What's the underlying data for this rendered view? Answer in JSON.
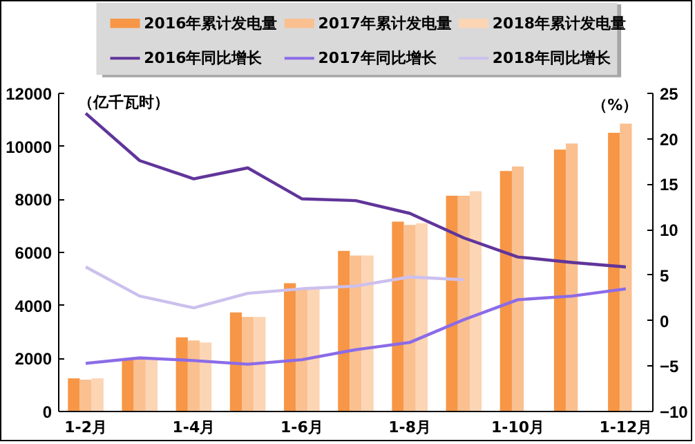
{
  "chart_data": {
    "type": "bar",
    "ylabel": "（亿千瓦时）",
    "y2label": "（%）",
    "categories": [
      "1-2月",
      null,
      "1-4月",
      null,
      "1-6月",
      null,
      "1-8月",
      null,
      "1-10月",
      null,
      "1-12月"
    ],
    "series": [
      {
        "name": "2016年累计发电量",
        "color": "#f79646",
        "values": [
          1250,
          1970,
          2800,
          3740,
          4840,
          6060,
          7160,
          8140,
          9070,
          9880,
          10510
        ]
      },
      {
        "name": "2017年累计发电量",
        "color": "#fac090",
        "values": [
          1200,
          2000,
          2680,
          3570,
          4610,
          5880,
          7040,
          8140,
          9240,
          10110,
          10860
        ]
      },
      {
        "name": "2018年累计发电量",
        "color": "#fcd5b5",
        "values": [
          1250,
          1950,
          2600,
          3570,
          4610,
          5880,
          7100,
          8310,
          null,
          null,
          null
        ]
      },
      {
        "name": "2016年同比增长",
        "type": "line",
        "axis": "y2",
        "color": "#60359a",
        "values": [
          22.8,
          17.6,
          15.6,
          16.8,
          13.4,
          13.2,
          11.8,
          9.1,
          7.0,
          6.4,
          5.9
        ]
      },
      {
        "name": "2017年同比增长",
        "type": "line",
        "axis": "y2",
        "color": "#8b6be8",
        "values": [
          -4.7,
          -4.1,
          -4.4,
          -4.8,
          -4.3,
          -3.2,
          -2.4,
          0.1,
          2.3,
          2.7,
          3.5
        ]
      },
      {
        "name": "2018年同比增长",
        "type": "line",
        "axis": "y2",
        "color": "#ccc0ee",
        "values": [
          5.9,
          2.7,
          1.4,
          3.0,
          3.5,
          3.8,
          4.8,
          4.5,
          null,
          null,
          null
        ]
      }
    ],
    "ylim": [
      0,
      12000
    ],
    "yticks": [
      0,
      2000,
      4000,
      6000,
      8000,
      10000,
      12000
    ],
    "y2lim": [
      -10,
      25
    ],
    "y2ticks": [
      -10,
      -5,
      0,
      5,
      10,
      15,
      20,
      25
    ],
    "legend": "top",
    "grid": false
  }
}
